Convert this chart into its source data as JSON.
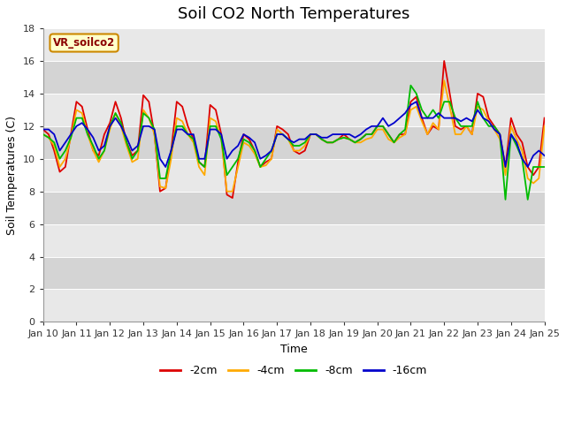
{
  "title": "Soil CO2 North Temperatures",
  "xlabel": "Time",
  "ylabel": "Soil Temperatures (C)",
  "annotation": "VR_soilco2",
  "xlim": [
    0,
    15
  ],
  "ylim": [
    0,
    18
  ],
  "yticks": [
    0,
    2,
    4,
    6,
    8,
    10,
    12,
    14,
    16,
    18
  ],
  "xtick_labels": [
    "Jan 10",
    "Jan 11",
    "Jan 12",
    "Jan 13",
    "Jan 14",
    "Jan 15",
    "Jan 16",
    "Jan 17",
    "Jan 18",
    "Jan 19",
    "Jan 20",
    "Jan 21",
    "Jan 22",
    "Jan 23",
    "Jan 24",
    "Jan 25"
  ],
  "series_colors": [
    "#dd0000",
    "#ffaa00",
    "#00bb00",
    "#0000cc"
  ],
  "series_labels": [
    "-2cm",
    "-4cm",
    "-8cm",
    "-16cm"
  ],
  "bg_color": "#ffffff",
  "band_colors": [
    "#e8e8e8",
    "#d4d4d4"
  ],
  "grid_color": "#cccccc",
  "title_fontsize": 13,
  "axis_label_fontsize": 9,
  "tick_fontsize": 8,
  "data_x": [
    0.0,
    0.167,
    0.333,
    0.5,
    0.667,
    0.833,
    1.0,
    1.167,
    1.333,
    1.5,
    1.667,
    1.833,
    2.0,
    2.167,
    2.333,
    2.5,
    2.667,
    2.833,
    3.0,
    3.167,
    3.333,
    3.5,
    3.667,
    3.833,
    4.0,
    4.167,
    4.333,
    4.5,
    4.667,
    4.833,
    5.0,
    5.167,
    5.333,
    5.5,
    5.667,
    5.833,
    6.0,
    6.167,
    6.333,
    6.5,
    6.667,
    6.833,
    7.0,
    7.167,
    7.333,
    7.5,
    7.667,
    7.833,
    8.0,
    8.167,
    8.333,
    8.5,
    8.667,
    8.833,
    9.0,
    9.167,
    9.333,
    9.5,
    9.667,
    9.833,
    10.0,
    10.167,
    10.333,
    10.5,
    10.667,
    10.833,
    11.0,
    11.167,
    11.333,
    11.5,
    11.667,
    11.833,
    12.0,
    12.167,
    12.333,
    12.5,
    12.667,
    12.833,
    13.0,
    13.167,
    13.333,
    13.5,
    13.667,
    13.833,
    14.0,
    14.167,
    14.333,
    14.5,
    14.667,
    14.833,
    15.0
  ],
  "data_2cm": [
    11.8,
    11.5,
    10.5,
    9.2,
    9.5,
    11.5,
    13.5,
    13.2,
    11.8,
    10.5,
    10.2,
    11.5,
    12.2,
    13.5,
    12.5,
    11.0,
    10.2,
    10.5,
    13.9,
    13.5,
    11.5,
    8.0,
    8.2,
    10.5,
    13.5,
    13.2,
    12.0,
    11.2,
    9.8,
    9.5,
    13.3,
    13.0,
    11.5,
    7.8,
    7.6,
    9.8,
    11.5,
    11.2,
    10.5,
    9.5,
    9.8,
    10.0,
    12.0,
    11.8,
    11.5,
    10.5,
    10.3,
    10.5,
    11.5,
    11.5,
    11.2,
    11.0,
    11.0,
    11.2,
    11.5,
    11.2,
    11.0,
    11.2,
    11.5,
    11.5,
    12.0,
    12.0,
    11.5,
    11.0,
    11.5,
    11.5,
    13.5,
    13.8,
    12.5,
    11.5,
    12.0,
    11.8,
    16.0,
    14.0,
    12.0,
    11.8,
    12.0,
    11.5,
    14.0,
    13.8,
    12.5,
    12.0,
    11.5,
    9.5,
    12.5,
    11.5,
    11.0,
    9.5,
    9.0,
    9.5,
    12.5
  ],
  "data_4cm": [
    11.5,
    11.3,
    10.8,
    9.5,
    10.0,
    11.3,
    13.0,
    12.8,
    11.5,
    10.5,
    9.8,
    10.5,
    11.8,
    12.8,
    12.0,
    10.8,
    9.8,
    10.0,
    13.0,
    12.5,
    11.5,
    8.3,
    8.2,
    10.0,
    12.5,
    12.3,
    11.5,
    11.0,
    9.5,
    9.0,
    12.5,
    12.3,
    11.2,
    8.0,
    8.0,
    9.5,
    11.0,
    10.8,
    10.3,
    9.5,
    9.6,
    10.0,
    11.8,
    11.5,
    11.2,
    10.5,
    10.5,
    10.8,
    11.5,
    11.5,
    11.2,
    11.0,
    11.0,
    11.2,
    11.3,
    11.2,
    11.0,
    11.0,
    11.2,
    11.3,
    11.8,
    11.8,
    11.2,
    11.0,
    11.3,
    11.5,
    13.0,
    13.2,
    12.3,
    11.5,
    12.2,
    11.8,
    14.8,
    13.2,
    11.5,
    11.5,
    12.0,
    11.5,
    13.2,
    13.0,
    12.3,
    11.8,
    11.2,
    9.0,
    12.0,
    11.2,
    10.5,
    8.8,
    8.5,
    8.8,
    12.0
  ],
  "data_8cm": [
    11.5,
    11.3,
    11.0,
    10.0,
    10.5,
    11.3,
    12.5,
    12.5,
    11.5,
    10.8,
    10.0,
    10.5,
    12.0,
    12.8,
    12.2,
    11.0,
    10.0,
    10.5,
    12.8,
    12.5,
    11.8,
    8.8,
    8.8,
    10.5,
    12.0,
    12.0,
    11.5,
    11.2,
    9.8,
    9.5,
    12.0,
    12.0,
    11.2,
    9.0,
    9.5,
    10.0,
    11.2,
    11.0,
    10.5,
    9.5,
    10.0,
    10.5,
    11.5,
    11.5,
    11.2,
    10.8,
    10.8,
    11.0,
    11.5,
    11.5,
    11.2,
    11.0,
    11.0,
    11.2,
    11.3,
    11.2,
    11.0,
    11.2,
    11.5,
    11.5,
    12.0,
    12.0,
    11.5,
    11.0,
    11.5,
    11.8,
    14.5,
    14.0,
    13.0,
    12.5,
    13.0,
    12.5,
    13.5,
    13.5,
    12.5,
    12.0,
    12.0,
    12.0,
    13.5,
    12.5,
    12.0,
    12.0,
    11.5,
    7.5,
    11.5,
    10.8,
    10.0,
    7.5,
    9.5,
    9.5,
    9.5
  ],
  "data_16cm": [
    11.8,
    11.8,
    11.5,
    10.5,
    11.0,
    11.5,
    12.0,
    12.2,
    11.8,
    11.3,
    10.5,
    10.8,
    12.0,
    12.5,
    12.0,
    11.3,
    10.5,
    10.8,
    12.0,
    12.0,
    11.8,
    10.0,
    9.5,
    10.5,
    11.8,
    11.8,
    11.5,
    11.5,
    10.0,
    10.0,
    11.8,
    11.8,
    11.5,
    10.0,
    10.5,
    10.8,
    11.5,
    11.3,
    11.0,
    10.0,
    10.2,
    10.5,
    11.5,
    11.5,
    11.2,
    11.0,
    11.2,
    11.2,
    11.5,
    11.5,
    11.3,
    11.3,
    11.5,
    11.5,
    11.5,
    11.5,
    11.3,
    11.5,
    11.8,
    12.0,
    12.0,
    12.5,
    12.0,
    12.2,
    12.5,
    12.8,
    13.3,
    13.5,
    12.5,
    12.5,
    12.5,
    12.8,
    12.5,
    12.5,
    12.5,
    12.3,
    12.5,
    12.3,
    13.0,
    12.5,
    12.3,
    11.8,
    11.5,
    9.5,
    11.5,
    11.0,
    10.0,
    9.5,
    10.2,
    10.5,
    10.2
  ]
}
